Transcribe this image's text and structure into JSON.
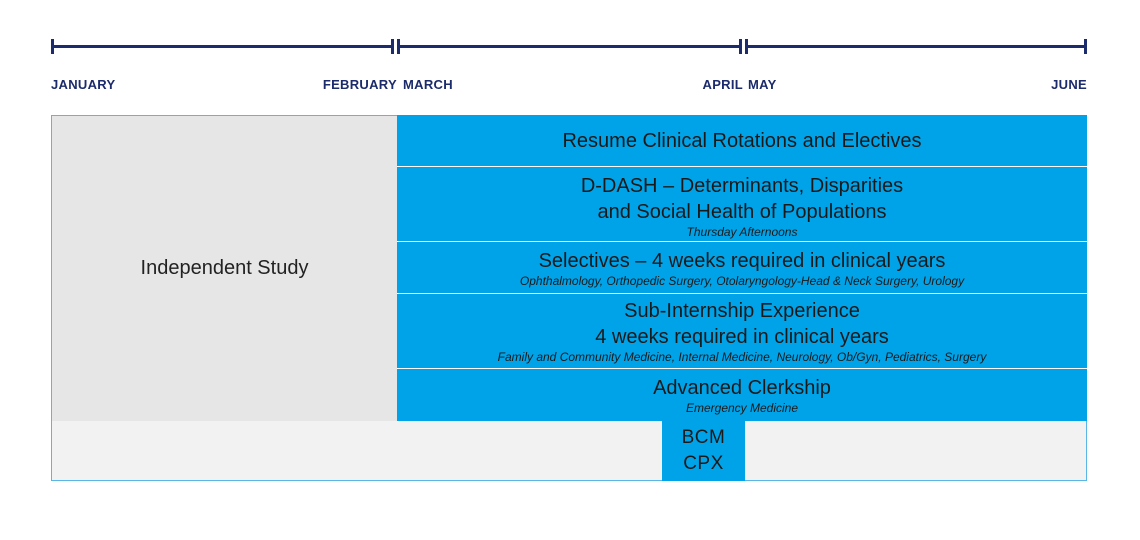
{
  "colors": {
    "timeline": "#1b2b6b",
    "activity_blue": "#00a3e8",
    "independent_gray": "#e6e6e6",
    "bottom_bar": "#f2f2f2",
    "border": "#59b7e8"
  },
  "timeline": {
    "months": {
      "january": "JANUARY",
      "february": "FEBRUARY",
      "march": "MARCH",
      "april": "APRIL",
      "may": "MAY",
      "june": "JUNE"
    }
  },
  "independent_study": "Independent Study",
  "rows": {
    "clinical": {
      "title": "Resume Clinical Rotations and Electives"
    },
    "ddash": {
      "title_line1": "D-DASH – Determinants, Disparities",
      "title_line2": "and Social Health of Populations",
      "note": "Thursday Afternoons"
    },
    "selectives": {
      "title": "Selectives – 4 weeks required in clinical years",
      "note": "Ophthalmology, Orthopedic Surgery, Otolaryngology-Head & Neck Surgery, Urology"
    },
    "subi": {
      "title_line1": "Sub-Internship Experience",
      "title_line2": "4 weeks required in clinical years",
      "note": "Family and Community Medicine, Internal Medicine, Neurology, Ob/Gyn, Pediatrics, Surgery"
    },
    "advanced": {
      "title": "Advanced Clerkship",
      "note": "Emergency Medicine"
    }
  },
  "bcm_cpx": {
    "line1": "BCM",
    "line2": "CPX"
  }
}
